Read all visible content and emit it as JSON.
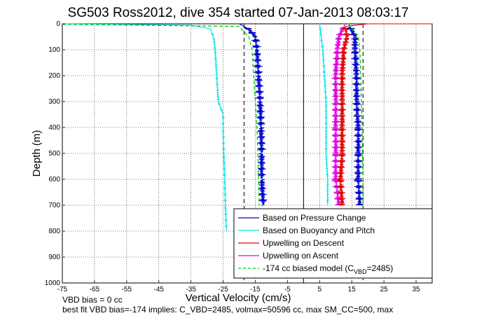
{
  "chart_data": {
    "type": "line",
    "title": "SG503 Ross2012, dive 354 started 07-Jan-2013 08:03:17",
    "xlabel": "Vertical Velocity (cm/s)",
    "ylabel": "Depth (m)",
    "xlim": [
      -75,
      40
    ],
    "ylim": [
      0,
      1000
    ],
    "y_inverted": true,
    "grid": true,
    "x_ticks": [
      -75,
      -65,
      -55,
      -45,
      -35,
      -25,
      -15,
      -5,
      5,
      15,
      25,
      35
    ],
    "y_ticks": [
      0,
      100,
      200,
      300,
      400,
      500,
      600,
      700,
      800,
      900,
      1000
    ],
    "legend": {
      "placement": "bottom-right",
      "entries": [
        {
          "label": "Based on Pressure Change",
          "color": "#0000cc",
          "style": "solid"
        },
        {
          "label": "Based on Buoyancy and Pitch",
          "color": "#00e5e5",
          "style": "solid"
        },
        {
          "label": "Upwelling on Descent",
          "color": "#e00000",
          "style": "solid"
        },
        {
          "label": "Upwelling on Ascent",
          "color": "#e000e0",
          "style": "solid"
        },
        {
          "label": "-174 cc biased model (C",
          "sub": "VBD",
          "suffix": "=2485)",
          "color": "#00cc00",
          "style": "dashed"
        }
      ]
    },
    "reference_lines": [
      {
        "x": -18.5,
        "style": "dashed",
        "color": "#000000"
      },
      {
        "x": 0,
        "style": "solid",
        "color": "#000000"
      },
      {
        "x": 18.5,
        "style": "dashed",
        "color": "#000000"
      }
    ],
    "series": [
      {
        "key": "pressure_descent",
        "color": "#0000cc",
        "points": [
          [
            -20,
            0
          ],
          [
            -17,
            20
          ],
          [
            -15,
            50
          ],
          [
            -14.5,
            100
          ],
          [
            -14,
            200
          ],
          [
            -13.5,
            300
          ],
          [
            -13.2,
            400
          ],
          [
            -13,
            500
          ],
          [
            -13,
            600
          ],
          [
            -12.5,
            700
          ]
        ]
      },
      {
        "key": "pressure_ascent",
        "color": "#0000cc",
        "points": [
          [
            14,
            0
          ],
          [
            16,
            50
          ],
          [
            16,
            100
          ],
          [
            16.5,
            200
          ],
          [
            16.5,
            300
          ],
          [
            17,
            400
          ],
          [
            17,
            500
          ],
          [
            17,
            600
          ],
          [
            17.5,
            700
          ]
        ]
      },
      {
        "key": "buoyancy_descent",
        "color": "#00e5e5",
        "points": [
          [
            -75,
            0
          ],
          [
            -35,
            5
          ],
          [
            -29,
            20
          ],
          [
            -28,
            50
          ],
          [
            -27.5,
            100
          ],
          [
            -27,
            200
          ],
          [
            -26.5,
            300
          ],
          [
            -25,
            350
          ],
          [
            -25,
            400
          ],
          [
            -24.8,
            500
          ],
          [
            -24.5,
            600
          ],
          [
            -24.3,
            700
          ],
          [
            -24,
            800
          ]
        ]
      },
      {
        "key": "buoyancy_ascent",
        "color": "#00e5e5",
        "points": [
          [
            5,
            0
          ],
          [
            6,
            100
          ],
          [
            6.5,
            200
          ],
          [
            7,
            300
          ],
          [
            7,
            400
          ],
          [
            7,
            500
          ],
          [
            7.5,
            600
          ],
          [
            7.5,
            700
          ]
        ]
      },
      {
        "key": "model_descent",
        "color": "#00cc00",
        "points": [
          [
            -75,
            2
          ],
          [
            -20,
            10
          ],
          [
            -17,
            50
          ],
          [
            -16,
            100
          ],
          [
            -15.5,
            200
          ],
          [
            -15,
            300
          ],
          [
            -14.5,
            400
          ],
          [
            -14.2,
            500
          ],
          [
            -14,
            600
          ],
          [
            -13.8,
            700
          ]
        ]
      },
      {
        "key": "model_ascent",
        "color": "#00cc00",
        "points": [
          [
            14,
            0
          ],
          [
            17,
            50
          ],
          [
            17.5,
            100
          ],
          [
            17.8,
            200
          ],
          [
            18,
            300
          ],
          [
            18.2,
            400
          ],
          [
            18.3,
            500
          ],
          [
            18.5,
            600
          ],
          [
            18.5,
            700
          ]
        ]
      },
      {
        "key": "upwelling_descent",
        "color": "#e00000",
        "points": [
          [
            40,
            0
          ],
          [
            20,
            0
          ],
          [
            13,
            10
          ],
          [
            13.5,
            50
          ],
          [
            12.5,
            100
          ],
          [
            12,
            200
          ],
          [
            12,
            300
          ],
          [
            12,
            400
          ],
          [
            12,
            500
          ],
          [
            11.5,
            600
          ],
          [
            12,
            700
          ]
        ]
      },
      {
        "key": "upwelling_ascent",
        "color": "#e000e0",
        "points": [
          [
            13,
            0
          ],
          [
            11,
            50
          ],
          [
            10.5,
            100
          ],
          [
            10,
            200
          ],
          [
            10,
            300
          ],
          [
            10,
            400
          ],
          [
            10,
            500
          ],
          [
            10,
            600
          ],
          [
            11,
            700
          ]
        ]
      }
    ],
    "footer_lines": [
      "VBD bias = 0 cc",
      "best fit VBD bias=-174 implies: C_VBD=2485, volmax=50596 cc, max SM_CC=500, max"
    ]
  }
}
